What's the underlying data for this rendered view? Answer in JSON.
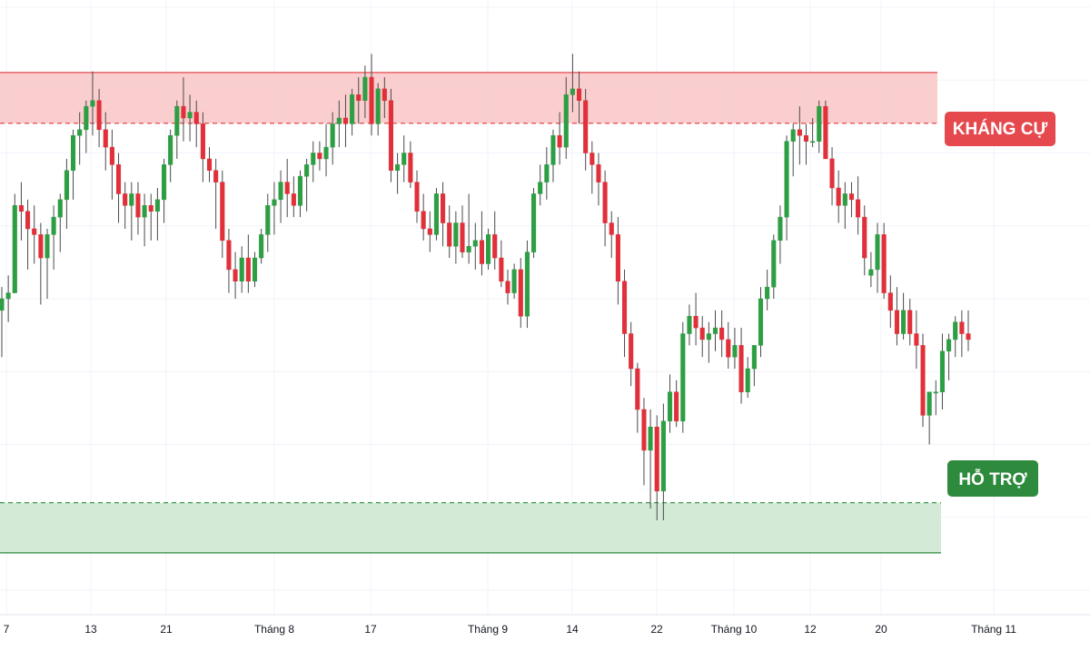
{
  "chart_data": {
    "type": "candlestick",
    "x_ticks": [
      "7",
      "13",
      "21",
      "Tháng 8",
      "17",
      "Tháng 9",
      "14",
      "22",
      "Tháng 10",
      "12",
      "20",
      "Tháng 11"
    ],
    "ylim": [
      0,
      100
    ],
    "resistance_zone": {
      "label": "KHÁNG CỰ",
      "low": 80.1,
      "high": 88.8
    },
    "support_zone": {
      "label": "HỖ TRỢ",
      "low": 6.4,
      "high": 15.0
    },
    "candles": [
      [
        48,
        52,
        40,
        50
      ],
      [
        50,
        54,
        46,
        51
      ],
      [
        51,
        68,
        51,
        66
      ],
      [
        66,
        70,
        60,
        65
      ],
      [
        65,
        67,
        55,
        62
      ],
      [
        62,
        66,
        56,
        61
      ],
      [
        61,
        63,
        49,
        57
      ],
      [
        57,
        62,
        50,
        61
      ],
      [
        61,
        66,
        55,
        64
      ],
      [
        64,
        68,
        58,
        67
      ],
      [
        67,
        74,
        62,
        72
      ],
      [
        72,
        79,
        67,
        78
      ],
      [
        78,
        82,
        73,
        79
      ],
      [
        79,
        84,
        75,
        83
      ],
      [
        83,
        89,
        78,
        84
      ],
      [
        84,
        86,
        76,
        79
      ],
      [
        79,
        82,
        72,
        76
      ],
      [
        76,
        79,
        67,
        73
      ],
      [
        73,
        75,
        63,
        68
      ],
      [
        68,
        70,
        62,
        66
      ],
      [
        66,
        70,
        60,
        68
      ],
      [
        68,
        70,
        61,
        64
      ],
      [
        64,
        68,
        59,
        66
      ],
      [
        66,
        68,
        60,
        65
      ],
      [
        65,
        69,
        60,
        67
      ],
      [
        67,
        74,
        63,
        73
      ],
      [
        73,
        79,
        70,
        78
      ],
      [
        78,
        84,
        74,
        83
      ],
      [
        83,
        88,
        77,
        81
      ],
      [
        81,
        85,
        77,
        82
      ],
      [
        82,
        84,
        76,
        80
      ],
      [
        80,
        82,
        70,
        74
      ],
      [
        74,
        76,
        70,
        72
      ],
      [
        72,
        74,
        62,
        70
      ],
      [
        70,
        72,
        57,
        60
      ],
      [
        60,
        62,
        51,
        55
      ],
      [
        55,
        58,
        50,
        53
      ],
      [
        53,
        59,
        51,
        57
      ],
      [
        57,
        61,
        51,
        53
      ],
      [
        53,
        58,
        52,
        57
      ],
      [
        57,
        62,
        56,
        61
      ],
      [
        61,
        68,
        58,
        66
      ],
      [
        66,
        70,
        61,
        67
      ],
      [
        67,
        72,
        63,
        70
      ],
      [
        70,
        74,
        64,
        68
      ],
      [
        68,
        71,
        64,
        66
      ],
      [
        66,
        72,
        64,
        71
      ],
      [
        71,
        74,
        65,
        73
      ],
      [
        73,
        77,
        70,
        75
      ],
      [
        75,
        77,
        72,
        74
      ],
      [
        74,
        80,
        71,
        76
      ],
      [
        76,
        82,
        73,
        80
      ],
      [
        80,
        84,
        76,
        81
      ],
      [
        81,
        85,
        76,
        80
      ],
      [
        80,
        86,
        78,
        85
      ],
      [
        85,
        88,
        80,
        84
      ],
      [
        84,
        90,
        81,
        88
      ],
      [
        88,
        92,
        78,
        80
      ],
      [
        80,
        87,
        78,
        86
      ],
      [
        86,
        88,
        81,
        84
      ],
      [
        84,
        86,
        70,
        72
      ],
      [
        72,
        75,
        68,
        73
      ],
      [
        73,
        78,
        70,
        75
      ],
      [
        75,
        77,
        69,
        70
      ],
      [
        70,
        72,
        63,
        65
      ],
      [
        65,
        68,
        60,
        62
      ],
      [
        62,
        65,
        58,
        61
      ],
      [
        61,
        69,
        60,
        68
      ],
      [
        68,
        70,
        59,
        63
      ],
      [
        63,
        66,
        57,
        59
      ],
      [
        59,
        65,
        56,
        63
      ],
      [
        63,
        66,
        57,
        58
      ],
      [
        58,
        68,
        56,
        59
      ],
      [
        59,
        63,
        55,
        60
      ],
      [
        60,
        65,
        54,
        56
      ],
      [
        56,
        62,
        55,
        61
      ],
      [
        61,
        65,
        55,
        57
      ],
      [
        57,
        60,
        52,
        53
      ],
      [
        53,
        55,
        49,
        51
      ],
      [
        51,
        56,
        50,
        55
      ],
      [
        55,
        57,
        45,
        47
      ],
      [
        47,
        60,
        45,
        58
      ],
      [
        58,
        69,
        57,
        68
      ],
      [
        68,
        73,
        66,
        70
      ],
      [
        70,
        76,
        67,
        73
      ],
      [
        73,
        79,
        70,
        78
      ],
      [
        78,
        82,
        73,
        76
      ],
      [
        76,
        88,
        74,
        85
      ],
      [
        85,
        92,
        82,
        86
      ],
      [
        86,
        89,
        80,
        84
      ],
      [
        84,
        86,
        72,
        75
      ],
      [
        75,
        77,
        68,
        73
      ],
      [
        73,
        75,
        66,
        70
      ],
      [
        70,
        72,
        59,
        63
      ],
      [
        63,
        65,
        57,
        61
      ],
      [
        61,
        64,
        49,
        53
      ],
      [
        53,
        55,
        40,
        44
      ],
      [
        44,
        46,
        35,
        38
      ],
      [
        38,
        39,
        27,
        31
      ],
      [
        31,
        33,
        18,
        24
      ],
      [
        24,
        31,
        14,
        28
      ],
      [
        28,
        30,
        12,
        17
      ],
      [
        17,
        32,
        12,
        29
      ],
      [
        29,
        37,
        27,
        34
      ],
      [
        34,
        36,
        28,
        29
      ],
      [
        29,
        46,
        27,
        44
      ],
      [
        44,
        49,
        42,
        47
      ],
      [
        47,
        51,
        42,
        45
      ],
      [
        45,
        47,
        40,
        43
      ],
      [
        43,
        46,
        39,
        44
      ],
      [
        44,
        48,
        41,
        45
      ],
      [
        45,
        48,
        40,
        43
      ],
      [
        43,
        46,
        38,
        40
      ],
      [
        40,
        45,
        38,
        42
      ],
      [
        42,
        45,
        32,
        34
      ],
      [
        34,
        40,
        33,
        38
      ],
      [
        38,
        42,
        35,
        42
      ],
      [
        42,
        52,
        40,
        50
      ],
      [
        50,
        55,
        48,
        52
      ],
      [
        52,
        61,
        50,
        60
      ],
      [
        60,
        66,
        56,
        64
      ],
      [
        64,
        78,
        60,
        77
      ],
      [
        77,
        80,
        71,
        79
      ],
      [
        79,
        83,
        73,
        78
      ],
      [
        78,
        80,
        73,
        77
      ],
      [
        77,
        81,
        76,
        77
      ],
      [
        77,
        84,
        75,
        83
      ],
      [
        83,
        84,
        74,
        74
      ],
      [
        74,
        76,
        66,
        69
      ],
      [
        69,
        72,
        63,
        66
      ],
      [
        66,
        70,
        62,
        68
      ],
      [
        68,
        70,
        64,
        67
      ],
      [
        67,
        71,
        61,
        64
      ],
      [
        64,
        66,
        54,
        57
      ],
      [
        54,
        58,
        52,
        55
      ],
      [
        55,
        63,
        51,
        61
      ],
      [
        61,
        63,
        50,
        51
      ],
      [
        51,
        54,
        45,
        48
      ],
      [
        48,
        52,
        42,
        44
      ],
      [
        44,
        51,
        43,
        48
      ],
      [
        48,
        50,
        42,
        44
      ],
      [
        44,
        48,
        38,
        42
      ],
      [
        42,
        44,
        28,
        30
      ],
      [
        30,
        33,
        25,
        34
      ],
      [
        34,
        36,
        30,
        34
      ],
      [
        34,
        44,
        31,
        41
      ],
      [
        41,
        44,
        36,
        43
      ],
      [
        43,
        47,
        40,
        46
      ],
      [
        46,
        48,
        40,
        44
      ],
      [
        44,
        48,
        41,
        43
      ]
    ]
  }
}
